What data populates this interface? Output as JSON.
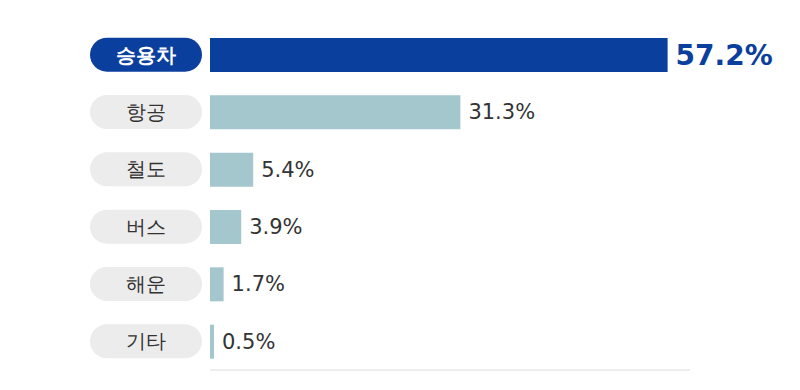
{
  "chart_data": {
    "type": "bar",
    "orientation": "horizontal",
    "categories": [
      "승용차",
      "항공",
      "철도",
      "버스",
      "해운",
      "기타"
    ],
    "values": [
      57.2,
      31.3,
      5.4,
      3.9,
      1.7,
      0.5
    ],
    "value_labels": [
      "57.2%",
      "31.3%",
      "5.4%",
      "3.9%",
      "1.7%",
      "0.5%"
    ],
    "colors": [
      "#0b3f9e",
      "#a3c7cd",
      "#a3c7cd",
      "#a3c7cd",
      "#a3c7cd",
      "#a3c7cd"
    ],
    "xlim": [
      0,
      60
    ],
    "data_labels": true,
    "tick_labels": "y",
    "grid": false
  }
}
